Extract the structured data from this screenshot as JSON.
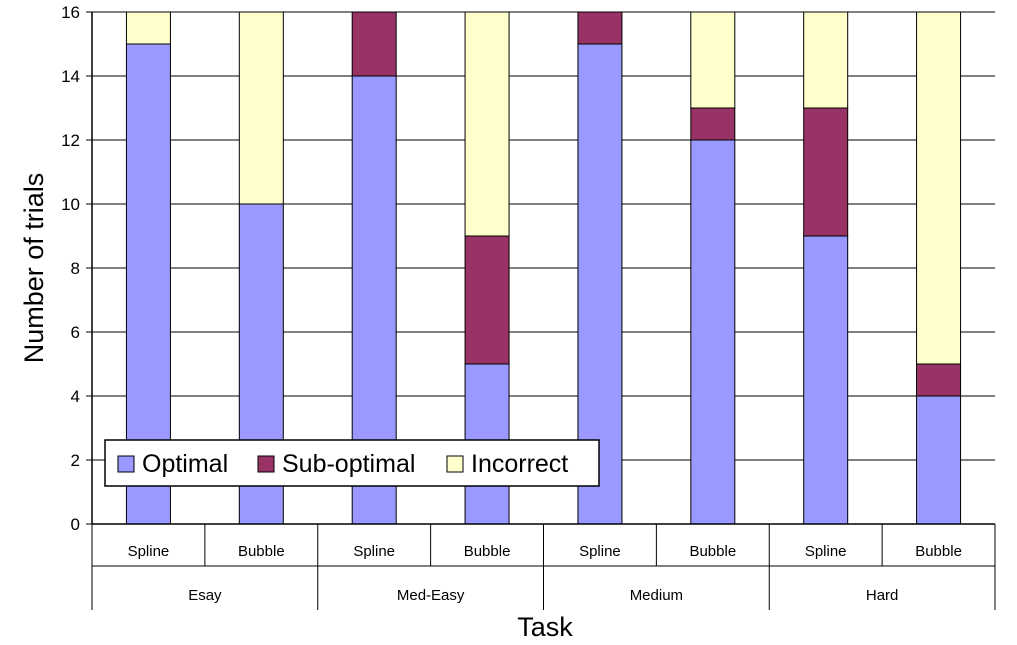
{
  "chart_data": {
    "type": "bar",
    "stacked": true,
    "xlabel": "Task",
    "ylabel": "Number of trials",
    "ylim": [
      0,
      16
    ],
    "yticks": [
      0,
      2,
      4,
      6,
      8,
      10,
      12,
      14,
      16
    ],
    "grid": true,
    "legend_position": "bottom-left",
    "groups": [
      "Esay",
      "Med-Easy",
      "Medium",
      "Hard"
    ],
    "categories": [
      "Spline",
      "Bubble",
      "Spline",
      "Bubble",
      "Spline",
      "Bubble",
      "Spline",
      "Bubble"
    ],
    "series": [
      {
        "name": "Optimal",
        "color": "#9999ff",
        "values": [
          15,
          10,
          14,
          5,
          15,
          12,
          9,
          4
        ]
      },
      {
        "name": "Sub-optimal",
        "color": "#993366",
        "values": [
          0,
          0,
          2,
          4,
          1,
          1,
          4,
          1
        ]
      },
      {
        "name": "Incorrect",
        "color": "#ffffcc",
        "values": [
          1,
          6,
          0,
          7,
          0,
          3,
          3,
          11
        ]
      }
    ]
  }
}
